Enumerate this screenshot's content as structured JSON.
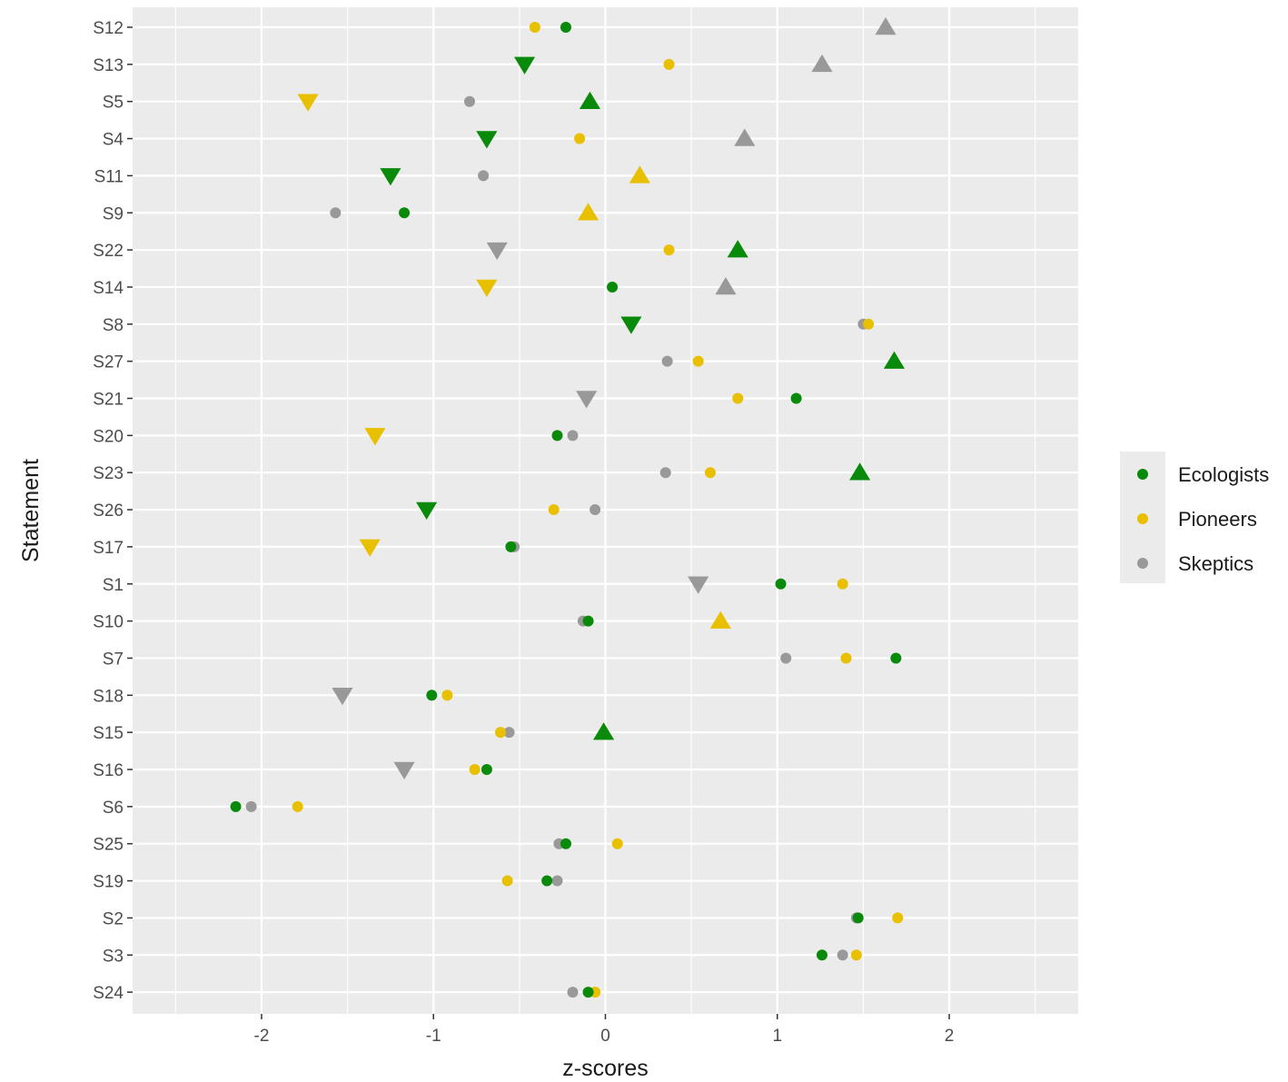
{
  "chart_data": {
    "type": "scatter",
    "title": "",
    "xlabel": "z-scores",
    "ylabel": "Statement",
    "xlim": [
      -2.75,
      2.75
    ],
    "x_ticks": [
      -2,
      -1,
      0,
      1,
      2
    ],
    "x_tick_labels": [
      "-2",
      "-1",
      "0",
      "1",
      "2"
    ],
    "grid": true,
    "legend_position": "right",
    "categories": [
      "S12",
      "S13",
      "S5",
      "S4",
      "S11",
      "S9",
      "S22",
      "S14",
      "S8",
      "S27",
      "S21",
      "S20",
      "S23",
      "S26",
      "S17",
      "S1",
      "S10",
      "S7",
      "S18",
      "S15",
      "S16",
      "S6",
      "S25",
      "S19",
      "S2",
      "S3",
      "S24"
    ],
    "marker_legend": {
      "circle": "",
      "triangle-up": "",
      "triangle-down": ""
    },
    "series": [
      {
        "name": "Ecologists",
        "color": "#0a8a0a",
        "values": [
          -0.23,
          -0.47,
          -0.09,
          -0.69,
          -1.25,
          -1.17,
          0.77,
          0.04,
          0.15,
          1.68,
          1.11,
          -0.28,
          1.48,
          -1.04,
          -0.55,
          1.02,
          -0.1,
          1.69,
          -1.01,
          -0.01,
          -0.69,
          -2.15,
          -0.23,
          -0.34,
          1.47,
          1.26,
          -0.1
        ],
        "markers": [
          "circle",
          "triangle-down",
          "triangle-up",
          "triangle-down",
          "triangle-down",
          "circle",
          "triangle-up",
          "circle",
          "triangle-down",
          "triangle-up",
          "circle",
          "circle",
          "triangle-up",
          "triangle-down",
          "circle",
          "circle",
          "circle",
          "circle",
          "circle",
          "triangle-up",
          "circle",
          "circle",
          "circle",
          "circle",
          "circle",
          "circle",
          "circle"
        ]
      },
      {
        "name": "Pioneers",
        "color": "#e8c000",
        "values": [
          -0.41,
          0.37,
          -1.73,
          -0.15,
          0.2,
          -0.1,
          0.37,
          -0.69,
          1.53,
          0.54,
          0.77,
          -1.34,
          0.61,
          -0.3,
          -1.37,
          1.38,
          0.67,
          1.4,
          -0.92,
          -0.61,
          -0.76,
          -1.79,
          0.07,
          -0.57,
          1.7,
          1.46,
          -0.06
        ],
        "markers": [
          "circle",
          "circle",
          "triangle-down",
          "circle",
          "triangle-up",
          "triangle-up",
          "circle",
          "triangle-down",
          "circle",
          "circle",
          "circle",
          "triangle-down",
          "circle",
          "circle",
          "triangle-down",
          "circle",
          "triangle-up",
          "circle",
          "circle",
          "circle",
          "circle",
          "circle",
          "circle",
          "circle",
          "circle",
          "circle",
          "circle"
        ]
      },
      {
        "name": "Skeptics",
        "color": "#999999",
        "values": [
          1.63,
          1.26,
          -0.79,
          0.81,
          -0.71,
          -1.57,
          -0.63,
          0.7,
          1.5,
          0.36,
          -0.11,
          -0.19,
          0.35,
          -0.06,
          -0.53,
          0.54,
          -0.13,
          1.05,
          -1.53,
          -0.56,
          -1.17,
          -2.06,
          -0.27,
          -0.28,
          1.46,
          1.38,
          -0.19
        ],
        "markers": [
          "triangle-up",
          "triangle-up",
          "circle",
          "triangle-up",
          "circle",
          "circle",
          "triangle-down",
          "triangle-up",
          "circle",
          "circle",
          "triangle-down",
          "circle",
          "circle",
          "circle",
          "circle",
          "triangle-down",
          "circle",
          "circle",
          "triangle-down",
          "circle",
          "triangle-down",
          "circle",
          "circle",
          "circle",
          "circle",
          "circle",
          "circle"
        ]
      }
    ]
  }
}
